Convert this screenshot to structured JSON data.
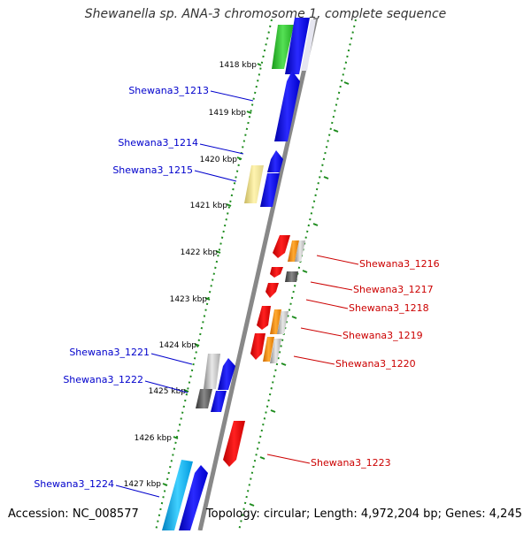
{
  "title": "Shewanella sp. ANA-3 chromosome 1, complete sequence",
  "accession": "Accession: NC_008577",
  "summary": "Topology: circular; Length: 4,972,204 bp; Genes: 4,245",
  "colors": {
    "left_labels": "#0000cc",
    "right_labels": "#cc0000",
    "backbone": "#888888",
    "ticks": "#1e8c1e"
  },
  "kbp_ticks": [
    "1418 kbp",
    "1419 kbp",
    "1420 kbp",
    "1421 kbp",
    "1422 kbp",
    "1423 kbp",
    "1424 kbp",
    "1425 kbp",
    "1426 kbp",
    "1427 kbp"
  ],
  "genes_left": [
    "Shewana3_1213",
    "Shewana3_1214",
    "Shewana3_1215",
    "Shewana3_1221",
    "Shewana3_1222",
    "Shewana3_1224"
  ],
  "genes_right": [
    "Shewana3_1216",
    "Shewana3_1217",
    "Shewana3_1218",
    "Shewana3_1219",
    "Shewana3_1220",
    "Shewana3_1223"
  ]
}
